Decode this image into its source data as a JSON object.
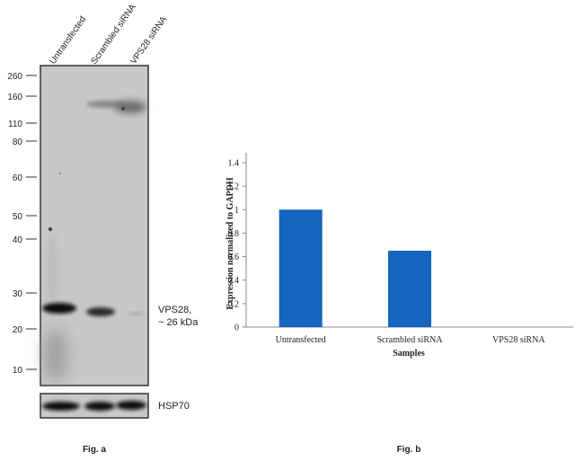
{
  "blot": {
    "lanes": [
      "Untransfected",
      "Scrambled siRNA",
      "VPS28 siRNA"
    ],
    "markers": [
      260,
      160,
      110,
      80,
      60,
      50,
      40,
      30,
      20,
      10
    ],
    "band_label": [
      "VPS28,",
      "~ 26 kDa"
    ],
    "loading_control": "HSP70",
    "caption": "Fig. a"
  },
  "chart_data": {
    "type": "bar",
    "categories": [
      "Untransfected",
      "Scrambled siRNA",
      "VPS28 siRNA"
    ],
    "values": [
      1.0,
      0.65,
      0.0
    ],
    "ylabel": "Expression normalized to GAPDH",
    "xlabel": "Samples",
    "ylim": [
      0,
      1.4
    ],
    "yticks": [
      0,
      0.2,
      0.4,
      0.6,
      0.8,
      1,
      1.2,
      1.4
    ],
    "grid": false,
    "bar_color": "#1565c0",
    "caption": "Fig. b"
  }
}
